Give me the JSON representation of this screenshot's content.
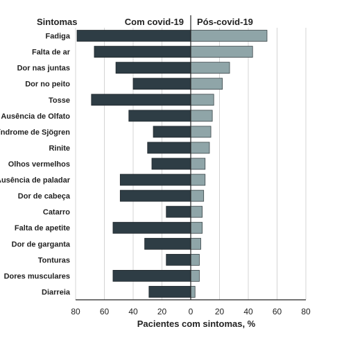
{
  "chart_data": {
    "type": "bar",
    "orientation": "horizontal-diverging",
    "header_categories": "Sintomas",
    "header_left": "Com covid-19",
    "header_right": "Pós-covid-19",
    "xlabel": "Pacientes com sintomas, %",
    "xlim": [
      -80,
      80
    ],
    "xticks": [
      -80,
      -60,
      -40,
      -20,
      0,
      20,
      40,
      60,
      80
    ],
    "xtick_labels": [
      "80",
      "60",
      "40",
      "20",
      "0",
      "20",
      "40",
      "60",
      "80"
    ],
    "grid": true,
    "categories": [
      "Fadiga",
      "Falta de ar",
      "Dor nas juntas",
      "Dor no peito",
      "Tosse",
      "Ausência de Olfato",
      "Síndrome de Sjögren",
      "Rinite",
      "Olhos vermelhos",
      "Ausência de paladar",
      "Dor de cabeça",
      "Catarro",
      "Falta de apetite",
      "Dor de garganta",
      "Tonturas",
      "Dores musculares",
      "Diarreia"
    ],
    "series": [
      {
        "name": "Com covid-19",
        "color": "#2e3d45",
        "values": [
          79,
          67,
          52,
          40,
          69,
          43,
          26,
          30,
          27,
          49,
          49,
          17,
          54,
          32,
          17,
          54,
          29
        ]
      },
      {
        "name": "Pós-covid-19",
        "color": "#8fa5a8",
        "values": [
          53,
          43,
          27,
          22,
          16,
          15,
          14,
          13,
          10,
          10,
          9,
          8,
          8,
          7,
          6,
          6,
          3
        ]
      }
    ]
  }
}
